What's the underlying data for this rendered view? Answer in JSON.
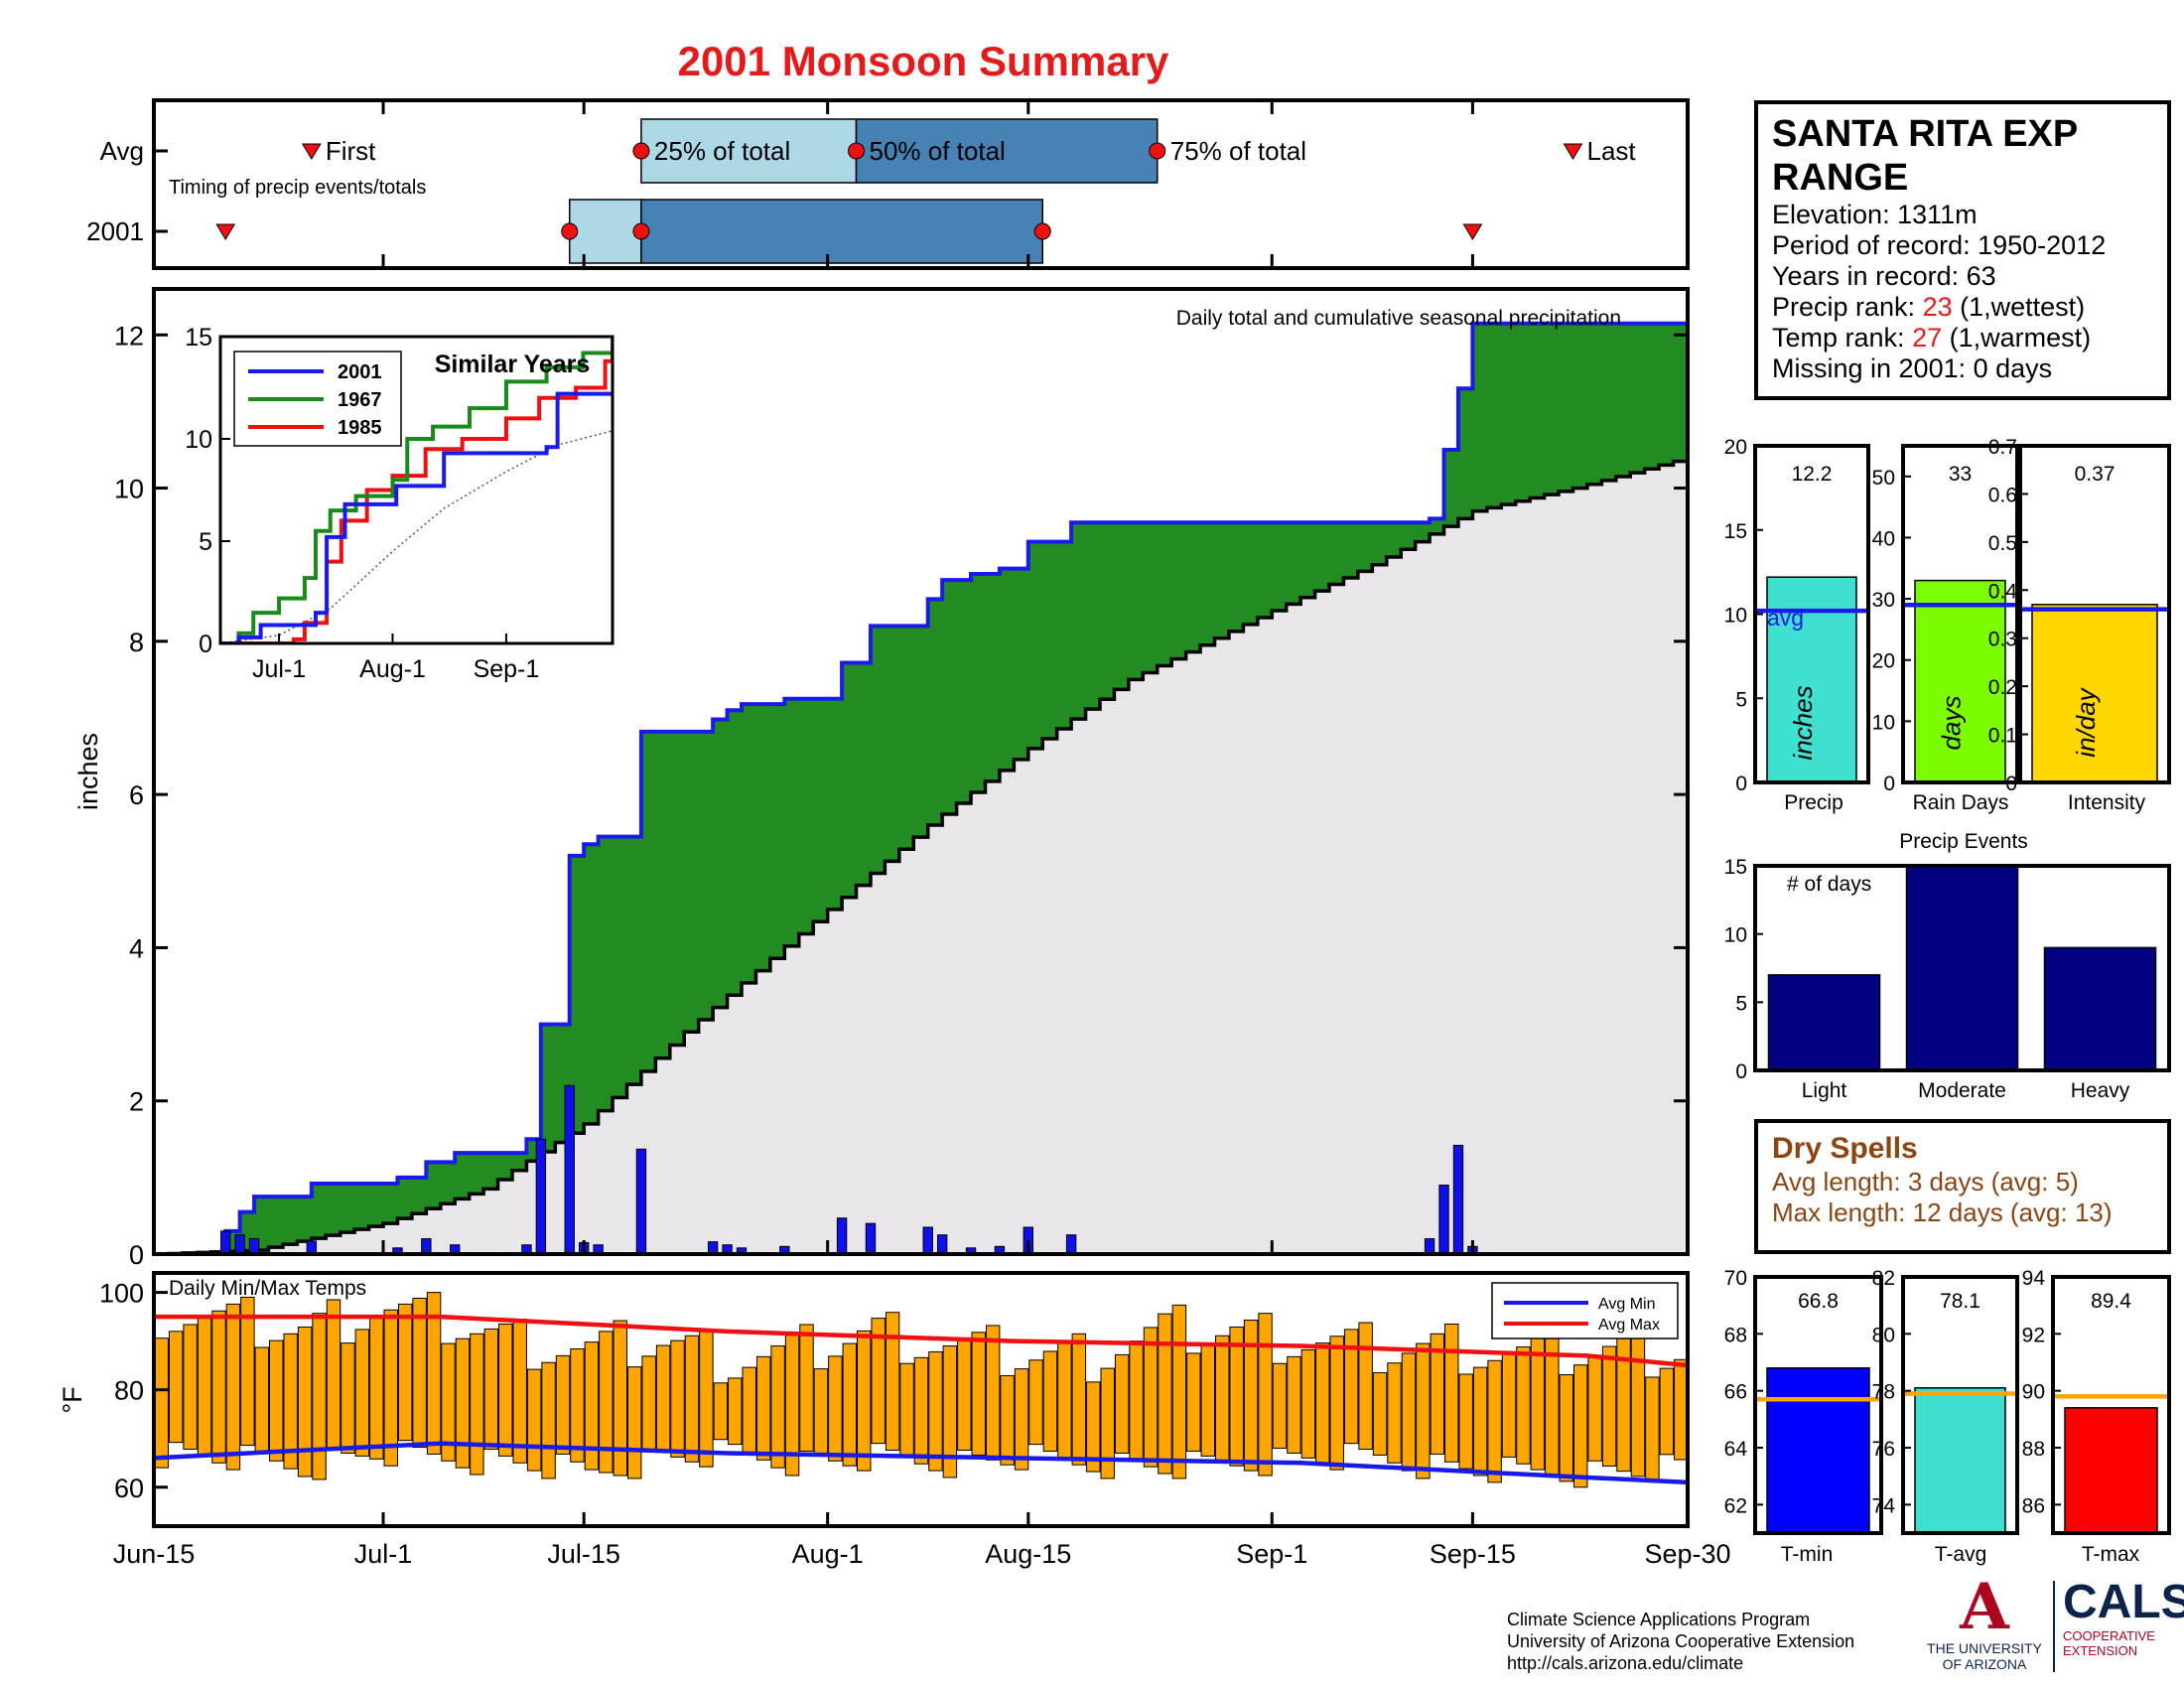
{
  "title": "2001 Monsoon Summary",
  "station": {
    "name": "SANTA RITA EXP RANGE",
    "lines": [
      {
        "label": "Elevation: 1311m"
      },
      {
        "label": "Period of record: 1950-2012"
      },
      {
        "label": "Years in record: 63"
      },
      {
        "label": "Precip rank: ",
        "value": "23",
        "suffix": " (1,wettest)"
      },
      {
        "label": "Temp rank: ",
        "value": "27",
        "suffix": " (1,warmest)"
      },
      {
        "label": "Missing in 2001: 0 days"
      }
    ]
  },
  "dry_spells": {
    "title": "Dry Spells",
    "avg_length": "Avg length: 3 days (avg: 5)",
    "max_length": "Max length: 12 days (avg: 13)"
  },
  "credits": {
    "line1": "Climate Science Applications Program",
    "line2": "University of Arizona Cooperative Extension",
    "line3": "http://cals.arizona.edu/climate"
  },
  "logos": {
    "ua_mark": "A",
    "ua_line1": "THE UNIVERSITY",
    "ua_line2": "OF ARIZONA",
    "cals_mark": "CALS",
    "cals_line1": "COOPERATIVE",
    "cals_line2": "EXTENSION"
  },
  "colors": {
    "title": "#e31b1b",
    "q_light": "#add8e6",
    "q_dark": "#4682b4",
    "seasonal_fill": "#228b22",
    "climo_fill": "#e8e6e8",
    "precip_line": "#1a1aee",
    "daily_bar": "#1010ee",
    "temp_bar": "#ffa500",
    "avg_min": "#1a1ae6",
    "avg_max": "#ee1111",
    "events": "#000080",
    "precip_bar": "#40e0d0",
    "raindays_bar": "#7cfc00",
    "intensity_bar": "#ffd700",
    "tmin_bar": "#0000ff",
    "tavg_bar": "#40e0d0",
    "tmax_bar": "#ff0000",
    "dry_text": "#8b4513"
  },
  "chart_data": [
    {
      "type": "timeline",
      "name": "timing",
      "note": "Timing of precip events/totals",
      "rows": [
        {
          "label": "Avg",
          "first": "Jun-26",
          "q25": "Jul-19",
          "q50": "Aug-3",
          "q75": "Aug-24",
          "last": "Sep-22",
          "first_label": "First",
          "last_label": "Last",
          "q25_label": "25% of total",
          "q50_label": "50% of total",
          "q75_label": "75% of total"
        },
        {
          "label": "2001",
          "first": "Jun-20",
          "q25": "Jul-14",
          "q50": "Jul-19",
          "q75": "Aug-16",
          "last": "Sep-15"
        }
      ]
    },
    {
      "type": "area",
      "name": "cumulative_precip",
      "subtitle": "Daily total and cumulative seasonal precipitation",
      "ylabel": "inches",
      "ylim": [
        0,
        12.6
      ],
      "yticks": [
        0,
        2,
        4,
        6,
        8,
        10,
        12
      ],
      "xlim": [
        "Jun-15",
        "Sep-30"
      ],
      "xticks": [
        "Jun-15",
        "Jul-1",
        "Jul-15",
        "Aug-1",
        "Aug-15",
        "Sep-1",
        "Sep-15",
        "Sep-30"
      ],
      "cumulative_2001": [
        {
          "x": "Jun-15",
          "y": 0
        },
        {
          "x": "Jun-20",
          "y": 0.3
        },
        {
          "x": "Jun-21",
          "y": 0.55
        },
        {
          "x": "Jun-22",
          "y": 0.75
        },
        {
          "x": "Jun-26",
          "y": 0.92
        },
        {
          "x": "Jul-2",
          "y": 1.0
        },
        {
          "x": "Jul-4",
          "y": 1.2
        },
        {
          "x": "Jul-6",
          "y": 1.32
        },
        {
          "x": "Jul-11",
          "y": 1.5
        },
        {
          "x": "Jul-12",
          "y": 3.0
        },
        {
          "x": "Jul-14",
          "y": 5.2
        },
        {
          "x": "Jul-15",
          "y": 5.35
        },
        {
          "x": "Jul-16",
          "y": 5.45
        },
        {
          "x": "Jul-19",
          "y": 6.82
        },
        {
          "x": "Jul-24",
          "y": 6.98
        },
        {
          "x": "Jul-25",
          "y": 7.1
        },
        {
          "x": "Jul-26",
          "y": 7.18
        },
        {
          "x": "Jul-29",
          "y": 7.25
        },
        {
          "x": "Aug-2",
          "y": 7.72
        },
        {
          "x": "Aug-4",
          "y": 8.2
        },
        {
          "x": "Aug-8",
          "y": 8.55
        },
        {
          "x": "Aug-9",
          "y": 8.8
        },
        {
          "x": "Aug-11",
          "y": 8.88
        },
        {
          "x": "Aug-13",
          "y": 8.95
        },
        {
          "x": "Aug-15",
          "y": 9.3
        },
        {
          "x": "Aug-18",
          "y": 9.55
        },
        {
          "x": "Sep-12",
          "y": 9.6
        },
        {
          "x": "Sep-13",
          "y": 10.5
        },
        {
          "x": "Sep-14",
          "y": 11.3
        },
        {
          "x": "Sep-15",
          "y": 12.15
        },
        {
          "x": "Sep-30",
          "y": 12.2
        }
      ],
      "climatology_cumulative": [
        {
          "x": "Jun-15",
          "y": 0
        },
        {
          "x": "Jun-22",
          "y": 0.05
        },
        {
          "x": "Jul-1",
          "y": 0.4
        },
        {
          "x": "Jul-8",
          "y": 0.85
        },
        {
          "x": "Jul-15",
          "y": 1.7
        },
        {
          "x": "Jul-22",
          "y": 2.9
        },
        {
          "x": "Aug-1",
          "y": 4.5
        },
        {
          "x": "Aug-8",
          "y": 5.6
        },
        {
          "x": "Aug-15",
          "y": 6.6
        },
        {
          "x": "Aug-22",
          "y": 7.5
        },
        {
          "x": "Sep-1",
          "y": 8.4
        },
        {
          "x": "Sep-8",
          "y": 9.0
        },
        {
          "x": "Sep-15",
          "y": 9.7
        },
        {
          "x": "Sep-22",
          "y": 10.0
        },
        {
          "x": "Sep-30",
          "y": 10.4
        }
      ],
      "daily_2001": [
        {
          "x": "Jun-20",
          "y": 0.3
        },
        {
          "x": "Jun-21",
          "y": 0.25
        },
        {
          "x": "Jun-22",
          "y": 0.2
        },
        {
          "x": "Jun-26",
          "y": 0.17
        },
        {
          "x": "Jul-2",
          "y": 0.08
        },
        {
          "x": "Jul-4",
          "y": 0.2
        },
        {
          "x": "Jul-6",
          "y": 0.12
        },
        {
          "x": "Jul-11",
          "y": 0.12
        },
        {
          "x": "Jul-12",
          "y": 1.5
        },
        {
          "x": "Jul-14",
          "y": 2.2
        },
        {
          "x": "Jul-15",
          "y": 0.15
        },
        {
          "x": "Jul-16",
          "y": 0.12
        },
        {
          "x": "Jul-19",
          "y": 1.37
        },
        {
          "x": "Jul-24",
          "y": 0.16
        },
        {
          "x": "Jul-25",
          "y": 0.12
        },
        {
          "x": "Jul-26",
          "y": 0.08
        },
        {
          "x": "Jul-29",
          "y": 0.1
        },
        {
          "x": "Aug-2",
          "y": 0.47
        },
        {
          "x": "Aug-4",
          "y": 0.4
        },
        {
          "x": "Aug-8",
          "y": 0.35
        },
        {
          "x": "Aug-9",
          "y": 0.25
        },
        {
          "x": "Aug-11",
          "y": 0.08
        },
        {
          "x": "Aug-13",
          "y": 0.1
        },
        {
          "x": "Aug-15",
          "y": 0.35
        },
        {
          "x": "Aug-18",
          "y": 0.25
        },
        {
          "x": "Sep-12",
          "y": 0.2
        },
        {
          "x": "Sep-13",
          "y": 0.9
        },
        {
          "x": "Sep-14",
          "y": 1.42
        },
        {
          "x": "Sep-15",
          "y": 0.1
        }
      ]
    },
    {
      "type": "line",
      "name": "similar_years",
      "title": "Similar Years",
      "ylim": [
        0,
        15
      ],
      "yticks": [
        0,
        5,
        10,
        15
      ],
      "xlim": [
        "Jun-15",
        "Sep-30"
      ],
      "xticks": [
        "Jul-1",
        "Aug-1",
        "Sep-1"
      ],
      "series": [
        {
          "name": "2001",
          "color": "#1a1aee",
          "points": [
            {
              "x": "Jun-15",
              "y": 0
            },
            {
              "x": "Jun-20",
              "y": 0.3
            },
            {
              "x": "Jun-26",
              "y": 0.9
            },
            {
              "x": "Jul-11",
              "y": 1.5
            },
            {
              "x": "Jul-14",
              "y": 5.2
            },
            {
              "x": "Jul-19",
              "y": 6.8
            },
            {
              "x": "Aug-2",
              "y": 7.7
            },
            {
              "x": "Aug-15",
              "y": 9.3
            },
            {
              "x": "Sep-12",
              "y": 9.6
            },
            {
              "x": "Sep-15",
              "y": 12.2
            },
            {
              "x": "Sep-30",
              "y": 12.2
            }
          ]
        },
        {
          "name": "1967",
          "color": "#1a8a1a",
          "points": [
            {
              "x": "Jun-15",
              "y": 0
            },
            {
              "x": "Jun-20",
              "y": 0.5
            },
            {
              "x": "Jun-24",
              "y": 1.5
            },
            {
              "x": "Jul-1",
              "y": 2.2
            },
            {
              "x": "Jul-8",
              "y": 3.2
            },
            {
              "x": "Jul-11",
              "y": 5.5
            },
            {
              "x": "Jul-15",
              "y": 6.5
            },
            {
              "x": "Jul-22",
              "y": 7.2
            },
            {
              "x": "Aug-1",
              "y": 8.0
            },
            {
              "x": "Aug-5",
              "y": 10.0
            },
            {
              "x": "Aug-12",
              "y": 10.6
            },
            {
              "x": "Aug-22",
              "y": 11.5
            },
            {
              "x": "Sep-1",
              "y": 12.8
            },
            {
              "x": "Sep-12",
              "y": 13.5
            },
            {
              "x": "Sep-22",
              "y": 14.2
            },
            {
              "x": "Sep-30",
              "y": 15.3
            }
          ]
        },
        {
          "name": "1985",
          "color": "#ee1111",
          "points": [
            {
              "x": "Jun-15",
              "y": 0
            },
            {
              "x": "Jul-5",
              "y": 0.2
            },
            {
              "x": "Jul-8",
              "y": 1.0
            },
            {
              "x": "Jul-14",
              "y": 4.0
            },
            {
              "x": "Jul-18",
              "y": 6.0
            },
            {
              "x": "Jul-25",
              "y": 7.5
            },
            {
              "x": "Aug-1",
              "y": 8.2
            },
            {
              "x": "Aug-10",
              "y": 9.5
            },
            {
              "x": "Aug-20",
              "y": 10.0
            },
            {
              "x": "Sep-1",
              "y": 11.0
            },
            {
              "x": "Sep-10",
              "y": 12.0
            },
            {
              "x": "Sep-20",
              "y": 12.5
            },
            {
              "x": "Sep-28",
              "y": 13.8
            },
            {
              "x": "Sep-30",
              "y": 15.2
            }
          ]
        },
        {
          "name": "",
          "color": "#555555",
          "dotted": true,
          "points": [
            {
              "x": "Jun-15",
              "y": 0
            },
            {
              "x": "Jul-1",
              "y": 0.4
            },
            {
              "x": "Jul-15",
              "y": 1.7
            },
            {
              "x": "Aug-1",
              "y": 4.5
            },
            {
              "x": "Aug-15",
              "y": 6.6
            },
            {
              "x": "Sep-1",
              "y": 8.4
            },
            {
              "x": "Sep-15",
              "y": 9.7
            },
            {
              "x": "Sep-30",
              "y": 10.4
            }
          ]
        }
      ]
    },
    {
      "type": "bar",
      "name": "daily_temps",
      "title": "Daily Min/Max Temps",
      "ylabel": "°F",
      "ylim": [
        52,
        104
      ],
      "yticks": [
        60,
        80,
        100
      ],
      "xlim": [
        "Jun-15",
        "Sep-30"
      ],
      "legend": {
        "position": "top-right",
        "items": [
          "Avg Min",
          "Avg Max"
        ]
      },
      "tmin_profile": [
        [
          0,
          67
        ],
        [
          5,
          66
        ],
        [
          10,
          64
        ],
        [
          15,
          67
        ],
        [
          20,
          66
        ],
        [
          25,
          65
        ],
        [
          30,
          63
        ],
        [
          35,
          66
        ],
        [
          40,
          67
        ],
        [
          45,
          65
        ],
        [
          50,
          66
        ],
        [
          55,
          65
        ],
        [
          60,
          66
        ],
        [
          65,
          65
        ],
        [
          70,
          64
        ],
        [
          75,
          65
        ],
        [
          80,
          66
        ],
        [
          85,
          66
        ],
        [
          90,
          64
        ],
        [
          95,
          63
        ],
        [
          100,
          63
        ],
        [
          107,
          64
        ]
      ],
      "tmax_profile": [
        [
          0,
          96
        ],
        [
          5,
          94
        ],
        [
          10,
          92
        ],
        [
          15,
          97
        ],
        [
          20,
          94
        ],
        [
          25,
          90
        ],
        [
          30,
          88
        ],
        [
          35,
          90
        ],
        [
          40,
          86
        ],
        [
          45,
          88
        ],
        [
          50,
          92
        ],
        [
          55,
          89
        ],
        [
          60,
          87
        ],
        [
          65,
          87
        ],
        [
          70,
          92
        ],
        [
          75,
          92
        ],
        [
          80,
          90
        ],
        [
          85,
          88
        ],
        [
          90,
          89
        ],
        [
          95,
          87
        ],
        [
          100,
          88
        ],
        [
          107,
          88
        ]
      ],
      "avg_min_line": [
        [
          0,
          66
        ],
        [
          20,
          69
        ],
        [
          40,
          67
        ],
        [
          60,
          66
        ],
        [
          80,
          65
        ],
        [
          100,
          62
        ],
        [
          107,
          61
        ]
      ],
      "avg_max_line": [
        [
          0,
          95
        ],
        [
          20,
          95
        ],
        [
          40,
          92
        ],
        [
          60,
          90
        ],
        [
          80,
          89
        ],
        [
          100,
          87
        ],
        [
          107,
          85
        ]
      ]
    },
    {
      "type": "bar",
      "name": "precip_total",
      "xlabel": "Precip",
      "value": 12.2,
      "avg": 10.2,
      "avg_label": "avg",
      "inner_label": "inches",
      "ylim": [
        0,
        20
      ],
      "yticks": [
        0,
        5,
        10,
        15,
        20
      ]
    },
    {
      "type": "bar",
      "name": "rain_days",
      "xlabel": "Rain Days",
      "value": 33,
      "avg": 29,
      "inner_label": "days",
      "ylim": [
        0,
        55
      ],
      "yticks": [
        0,
        10,
        20,
        30,
        40,
        50
      ]
    },
    {
      "type": "bar",
      "name": "intensity",
      "xlabel": "Intensity",
      "value": 0.37,
      "avg": 0.36,
      "inner_label": "in/day",
      "ylim": [
        0,
        0.7
      ],
      "yticks": [
        0,
        0.1,
        0.2,
        0.3,
        0.4,
        0.5,
        0.6,
        0.7
      ]
    },
    {
      "type": "bar",
      "name": "precip_events",
      "title": "Precip Events",
      "note": "# of days",
      "categories": [
        "Light",
        "Moderate",
        "Heavy"
      ],
      "values": [
        7,
        15,
        9
      ],
      "ylim": [
        0,
        15
      ],
      "yticks": [
        0,
        5,
        10,
        15
      ]
    },
    {
      "type": "bar",
      "name": "tmin_mean",
      "xlabel": "T-min",
      "value": 66.8,
      "avg": 65.7,
      "ylim": [
        61,
        70
      ],
      "yticks": [
        62,
        64,
        66,
        68,
        70
      ]
    },
    {
      "type": "bar",
      "name": "tavg_mean",
      "xlabel": "T-avg",
      "value": 78.1,
      "avg": 77.9,
      "ylim": [
        73,
        82
      ],
      "yticks": [
        74,
        76,
        78,
        80,
        82
      ]
    },
    {
      "type": "bar",
      "name": "tmax_mean",
      "xlabel": "T-max",
      "value": 89.4,
      "avg": 89.8,
      "ylim": [
        85,
        94
      ],
      "yticks": [
        86,
        88,
        90,
        92,
        94
      ]
    }
  ]
}
